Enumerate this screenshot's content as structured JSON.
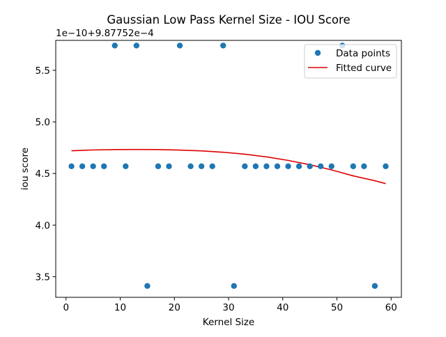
{
  "chart_data": {
    "type": "scatter",
    "title": "Gaussian Low Pass Kernel Size - IOU Score",
    "xlabel": "Kernel Size",
    "ylabel": "iou score",
    "offset_text": "1e−10+9.87752e−4",
    "xlim": [
      -1.9,
      61.9
    ],
    "ylim": [
      3.3,
      5.79
    ],
    "x_ticks": [
      0,
      10,
      20,
      30,
      40,
      50,
      60
    ],
    "y_ticks": [
      3.5,
      4.0,
      4.5,
      5.0,
      5.5
    ],
    "y_tick_labels": [
      "3.5",
      "4.0",
      "4.5",
      "5.0",
      "5.5"
    ],
    "grid": false,
    "legend_position": "top-right",
    "series": [
      {
        "name": "Data points",
        "kind": "scatter",
        "color": "#1f77b4",
        "x": [
          1,
          3,
          5,
          7,
          9,
          11,
          13,
          15,
          17,
          19,
          21,
          23,
          25,
          27,
          29,
          31,
          33,
          35,
          37,
          39,
          41,
          43,
          45,
          47,
          49,
          51,
          53,
          55,
          57,
          59
        ],
        "y": [
          4.57,
          4.57,
          4.57,
          4.57,
          5.74,
          4.57,
          5.74,
          3.41,
          4.57,
          4.57,
          5.74,
          4.57,
          4.57,
          4.57,
          5.74,
          3.41,
          4.57,
          4.57,
          4.57,
          4.57,
          4.57,
          4.57,
          4.57,
          4.57,
          4.57,
          5.74,
          4.57,
          4.57,
          3.41,
          4.57
        ]
      },
      {
        "name": "Fitted curve",
        "kind": "line",
        "color": "#dd0000",
        "x": [
          1,
          5,
          9,
          13,
          17,
          21,
          25,
          29,
          33,
          37,
          41,
          45,
          49,
          53,
          57,
          59
        ],
        "y": [
          4.72,
          4.728,
          4.732,
          4.733,
          4.732,
          4.727,
          4.719,
          4.706,
          4.687,
          4.661,
          4.627,
          4.585,
          4.535,
          4.477,
          4.43,
          4.402
        ]
      }
    ]
  }
}
